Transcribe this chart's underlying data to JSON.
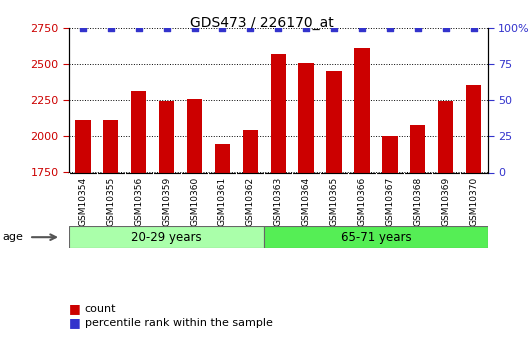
{
  "title": "GDS473 / 226170_at",
  "categories": [
    "GSM10354",
    "GSM10355",
    "GSM10356",
    "GSM10359",
    "GSM10360",
    "GSM10361",
    "GSM10362",
    "GSM10363",
    "GSM10364",
    "GSM10365",
    "GSM10366",
    "GSM10367",
    "GSM10368",
    "GSM10369",
    "GSM10370"
  ],
  "bar_values": [
    2115,
    2110,
    2310,
    2245,
    2260,
    1950,
    2040,
    2570,
    2505,
    2450,
    2610,
    2005,
    2075,
    2245,
    2355
  ],
  "percentile_values": [
    100,
    100,
    100,
    100,
    100,
    100,
    100,
    100,
    100,
    100,
    100,
    100,
    100,
    100,
    100
  ],
  "bar_color": "#cc0000",
  "percentile_color": "#3333cc",
  "ylim_left": [
    1750,
    2750
  ],
  "ylim_right": [
    0,
    100
  ],
  "yticks_left": [
    1750,
    2000,
    2250,
    2500,
    2750
  ],
  "yticks_right": [
    0,
    25,
    50,
    75,
    100
  ],
  "group1_label": "20-29 years",
  "group2_label": "65-71 years",
  "group1_count": 7,
  "group2_count": 8,
  "group1_color": "#aaffaa",
  "group2_color": "#55ee55",
  "age_label": "age",
  "legend_count": "count",
  "legend_percentile": "percentile rank within the sample",
  "xticklabel_bg": "#cccccc",
  "plot_bg": "#ffffff",
  "fig_bg": "#ffffff"
}
